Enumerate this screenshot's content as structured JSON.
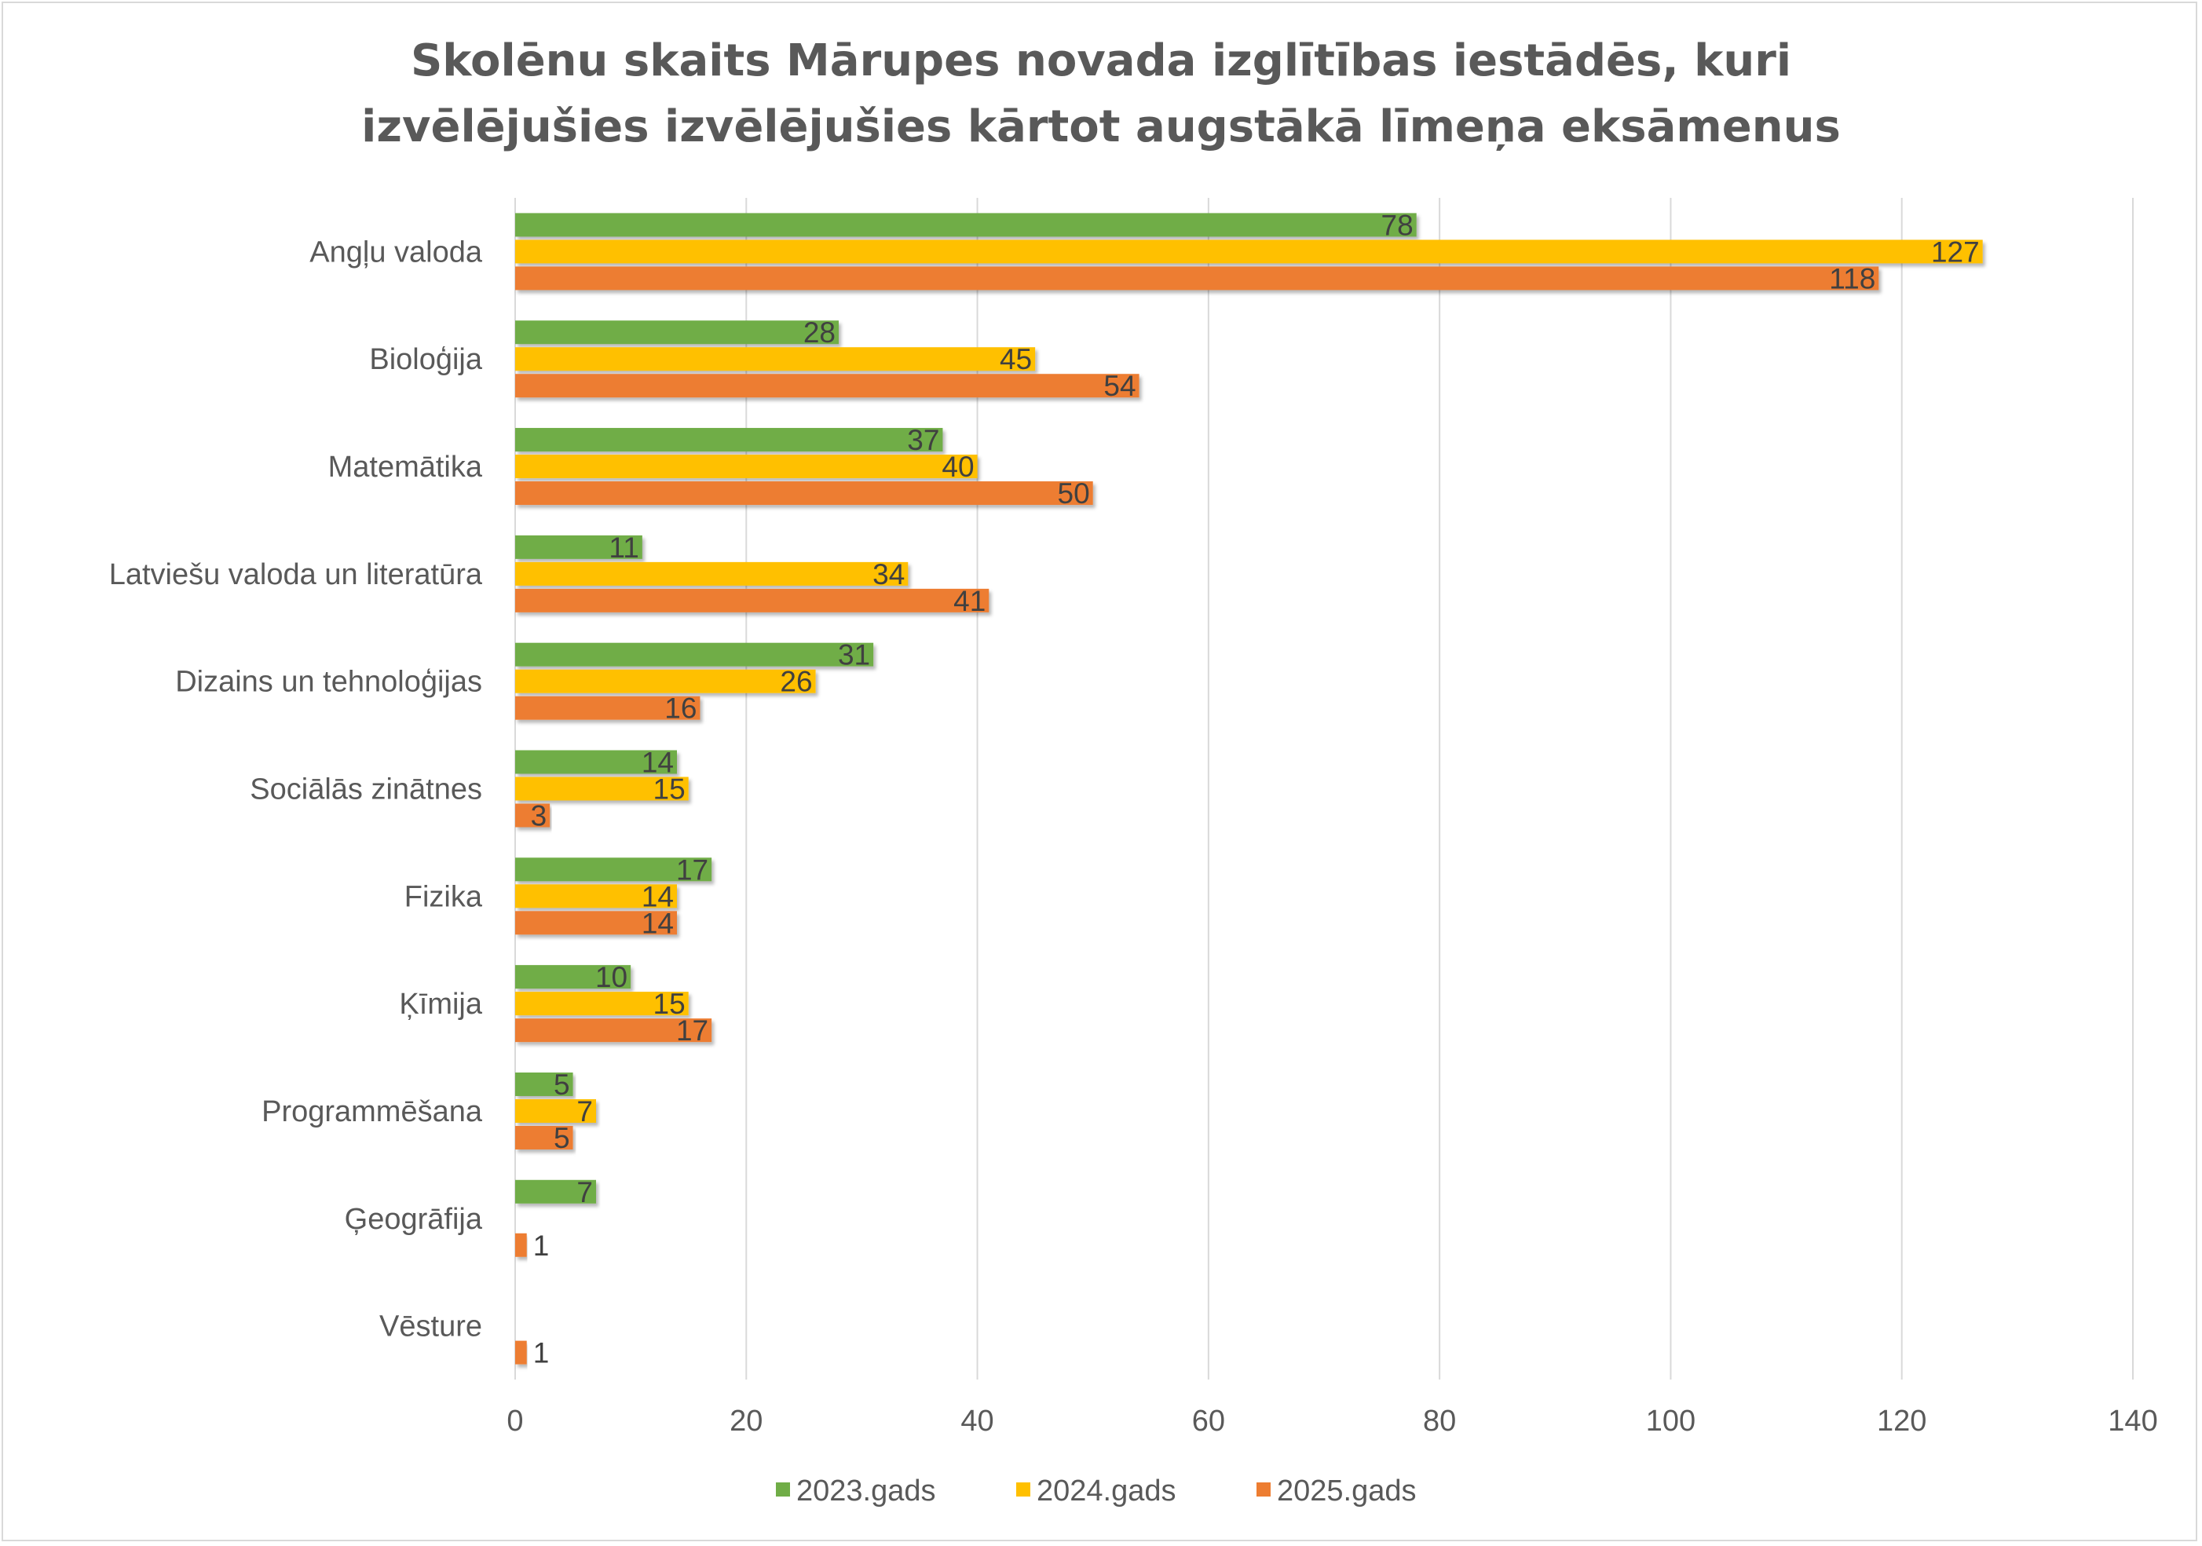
{
  "chart_data": {
    "type": "bar",
    "orientation": "horizontal",
    "title_lines": [
      "Skolēnu skaits Mārupes novada izglītības iestādēs, kuri",
      "izvēlējušies izvēlējušies kārtot augstākā līmeņa eksāmenus"
    ],
    "categories": [
      "Angļu valoda",
      "Bioloģija",
      "Matemātika",
      "Latviešu valoda un literatūra",
      "Dizains un tehnoloģijas",
      "Sociālās zinātnes",
      "Fizika",
      "Ķīmija",
      "Programmēšana",
      "Ģeogrāfija",
      "Vēsture"
    ],
    "series": [
      {
        "name": "2023.gads",
        "color": "#70ad47",
        "values": [
          78,
          28,
          37,
          11,
          31,
          14,
          17,
          10,
          5,
          7,
          null
        ]
      },
      {
        "name": "2024.gads",
        "color": "#ffc000",
        "values": [
          127,
          45,
          40,
          34,
          26,
          15,
          14,
          15,
          7,
          null,
          null
        ]
      },
      {
        "name": "2025.gads",
        "color": "#ed7d31",
        "values": [
          118,
          54,
          50,
          41,
          16,
          3,
          14,
          17,
          5,
          1,
          1
        ]
      }
    ],
    "xlim": [
      0,
      140
    ],
    "xticks": [
      0,
      20,
      40,
      60,
      80,
      100,
      120,
      140
    ],
    "grid": true,
    "legend": "bottom",
    "data_labels": true
  }
}
